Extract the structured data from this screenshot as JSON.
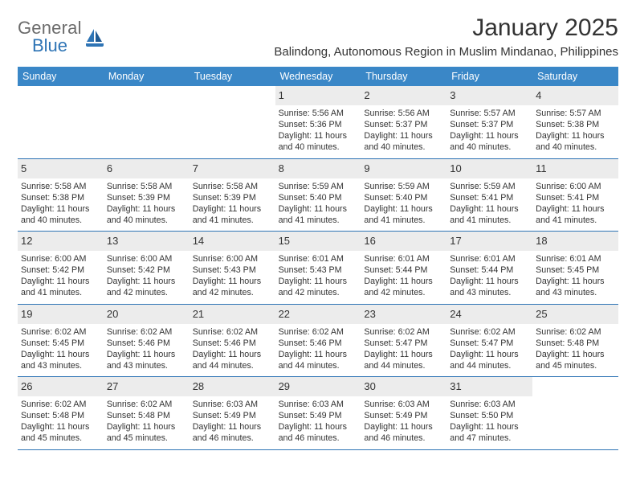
{
  "brand": {
    "word1": "General",
    "word2": "Blue"
  },
  "title": "January 2025",
  "location": "Balindong, Autonomous Region in Muslim Mindanao, Philippines",
  "colors": {
    "header_bg": "#3a87c7",
    "header_text": "#ffffff",
    "daynum_bg": "#ececec",
    "week_border": "#2e74b5",
    "text": "#333333",
    "logo_gray": "#6b6b6b",
    "logo_blue": "#2e74b5",
    "page_bg": "#ffffff"
  },
  "typography": {
    "title_fontsize": 30,
    "location_fontsize": 15,
    "dayheader_fontsize": 12.5,
    "daynum_fontsize": 13,
    "body_fontsize": 10.7
  },
  "day_names": [
    "Sunday",
    "Monday",
    "Tuesday",
    "Wednesday",
    "Thursday",
    "Friday",
    "Saturday"
  ],
  "weeks": [
    [
      {
        "n": "",
        "sr": "",
        "ss": "",
        "dl": ""
      },
      {
        "n": "",
        "sr": "",
        "ss": "",
        "dl": ""
      },
      {
        "n": "",
        "sr": "",
        "ss": "",
        "dl": ""
      },
      {
        "n": "1",
        "sr": "5:56 AM",
        "ss": "5:36 PM",
        "dl": "11 hours and 40 minutes."
      },
      {
        "n": "2",
        "sr": "5:56 AM",
        "ss": "5:37 PM",
        "dl": "11 hours and 40 minutes."
      },
      {
        "n": "3",
        "sr": "5:57 AM",
        "ss": "5:37 PM",
        "dl": "11 hours and 40 minutes."
      },
      {
        "n": "4",
        "sr": "5:57 AM",
        "ss": "5:38 PM",
        "dl": "11 hours and 40 minutes."
      }
    ],
    [
      {
        "n": "5",
        "sr": "5:58 AM",
        "ss": "5:38 PM",
        "dl": "11 hours and 40 minutes."
      },
      {
        "n": "6",
        "sr": "5:58 AM",
        "ss": "5:39 PM",
        "dl": "11 hours and 40 minutes."
      },
      {
        "n": "7",
        "sr": "5:58 AM",
        "ss": "5:39 PM",
        "dl": "11 hours and 41 minutes."
      },
      {
        "n": "8",
        "sr": "5:59 AM",
        "ss": "5:40 PM",
        "dl": "11 hours and 41 minutes."
      },
      {
        "n": "9",
        "sr": "5:59 AM",
        "ss": "5:40 PM",
        "dl": "11 hours and 41 minutes."
      },
      {
        "n": "10",
        "sr": "5:59 AM",
        "ss": "5:41 PM",
        "dl": "11 hours and 41 minutes."
      },
      {
        "n": "11",
        "sr": "6:00 AM",
        "ss": "5:41 PM",
        "dl": "11 hours and 41 minutes."
      }
    ],
    [
      {
        "n": "12",
        "sr": "6:00 AM",
        "ss": "5:42 PM",
        "dl": "11 hours and 41 minutes."
      },
      {
        "n": "13",
        "sr": "6:00 AM",
        "ss": "5:42 PM",
        "dl": "11 hours and 42 minutes."
      },
      {
        "n": "14",
        "sr": "6:00 AM",
        "ss": "5:43 PM",
        "dl": "11 hours and 42 minutes."
      },
      {
        "n": "15",
        "sr": "6:01 AM",
        "ss": "5:43 PM",
        "dl": "11 hours and 42 minutes."
      },
      {
        "n": "16",
        "sr": "6:01 AM",
        "ss": "5:44 PM",
        "dl": "11 hours and 42 minutes."
      },
      {
        "n": "17",
        "sr": "6:01 AM",
        "ss": "5:44 PM",
        "dl": "11 hours and 43 minutes."
      },
      {
        "n": "18",
        "sr": "6:01 AM",
        "ss": "5:45 PM",
        "dl": "11 hours and 43 minutes."
      }
    ],
    [
      {
        "n": "19",
        "sr": "6:02 AM",
        "ss": "5:45 PM",
        "dl": "11 hours and 43 minutes."
      },
      {
        "n": "20",
        "sr": "6:02 AM",
        "ss": "5:46 PM",
        "dl": "11 hours and 43 minutes."
      },
      {
        "n": "21",
        "sr": "6:02 AM",
        "ss": "5:46 PM",
        "dl": "11 hours and 44 minutes."
      },
      {
        "n": "22",
        "sr": "6:02 AM",
        "ss": "5:46 PM",
        "dl": "11 hours and 44 minutes."
      },
      {
        "n": "23",
        "sr": "6:02 AM",
        "ss": "5:47 PM",
        "dl": "11 hours and 44 minutes."
      },
      {
        "n": "24",
        "sr": "6:02 AM",
        "ss": "5:47 PM",
        "dl": "11 hours and 44 minutes."
      },
      {
        "n": "25",
        "sr": "6:02 AM",
        "ss": "5:48 PM",
        "dl": "11 hours and 45 minutes."
      }
    ],
    [
      {
        "n": "26",
        "sr": "6:02 AM",
        "ss": "5:48 PM",
        "dl": "11 hours and 45 minutes."
      },
      {
        "n": "27",
        "sr": "6:02 AM",
        "ss": "5:48 PM",
        "dl": "11 hours and 45 minutes."
      },
      {
        "n": "28",
        "sr": "6:03 AM",
        "ss": "5:49 PM",
        "dl": "11 hours and 46 minutes."
      },
      {
        "n": "29",
        "sr": "6:03 AM",
        "ss": "5:49 PM",
        "dl": "11 hours and 46 minutes."
      },
      {
        "n": "30",
        "sr": "6:03 AM",
        "ss": "5:49 PM",
        "dl": "11 hours and 46 minutes."
      },
      {
        "n": "31",
        "sr": "6:03 AM",
        "ss": "5:50 PM",
        "dl": "11 hours and 47 minutes."
      },
      {
        "n": "",
        "sr": "",
        "ss": "",
        "dl": ""
      }
    ]
  ],
  "labels": {
    "sunrise": "Sunrise:",
    "sunset": "Sunset:",
    "daylight": "Daylight:"
  }
}
